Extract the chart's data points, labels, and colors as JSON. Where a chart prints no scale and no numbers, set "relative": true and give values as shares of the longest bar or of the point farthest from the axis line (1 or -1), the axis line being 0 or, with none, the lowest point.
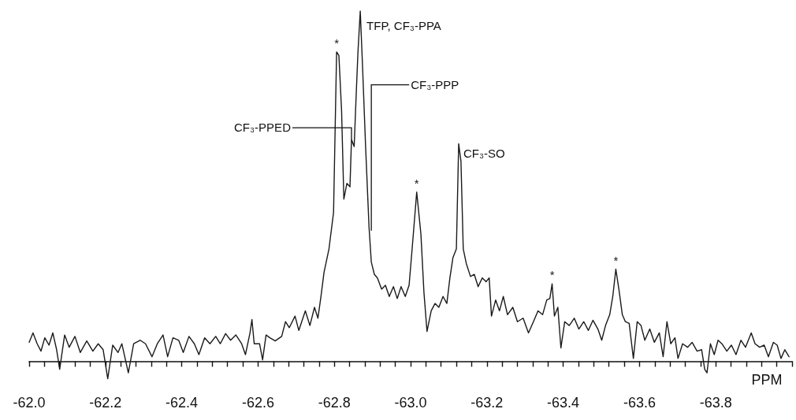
{
  "chart_data": {
    "type": "line",
    "relative": true,
    "xlabel": "PPM",
    "color": "#1a1a1a",
    "grid": false,
    "marker": "none",
    "line_style": "solid",
    "tick_labels": "x",
    "xlim": [
      -62.0,
      -64.0
    ],
    "xticks": [
      {
        "value": -62.0,
        "label": "-62.0"
      },
      {
        "value": -62.04,
        "label": null
      },
      {
        "value": -62.08,
        "label": null
      },
      {
        "value": -62.12,
        "label": null
      },
      {
        "value": -62.16,
        "label": null
      },
      {
        "value": -62.2,
        "label": "-62.2"
      },
      {
        "value": -62.24,
        "label": null
      },
      {
        "value": -62.28,
        "label": null
      },
      {
        "value": -62.32,
        "label": null
      },
      {
        "value": -62.36,
        "label": null
      },
      {
        "value": -62.4,
        "label": "-62.4"
      },
      {
        "value": -62.44,
        "label": null
      },
      {
        "value": -62.48,
        "label": null
      },
      {
        "value": -62.52,
        "label": null
      },
      {
        "value": -62.56,
        "label": null
      },
      {
        "value": -62.6,
        "label": "-62.6"
      },
      {
        "value": -62.64,
        "label": null
      },
      {
        "value": -62.68,
        "label": null
      },
      {
        "value": -62.72,
        "label": null
      },
      {
        "value": -62.76,
        "label": null
      },
      {
        "value": -62.8,
        "label": "-62.8"
      },
      {
        "value": -62.84,
        "label": null
      },
      {
        "value": -62.88,
        "label": null
      },
      {
        "value": -62.92,
        "label": null
      },
      {
        "value": -62.96,
        "label": null
      },
      {
        "value": -63.0,
        "label": "-63.0"
      },
      {
        "value": -63.04,
        "label": null
      },
      {
        "value": -63.08,
        "label": null
      },
      {
        "value": -63.12,
        "label": null
      },
      {
        "value": -63.16,
        "label": null
      },
      {
        "value": -63.2,
        "label": "-63.2"
      },
      {
        "value": -63.24,
        "label": null
      },
      {
        "value": -63.28,
        "label": null
      },
      {
        "value": -63.32,
        "label": null
      },
      {
        "value": -63.36,
        "label": null
      },
      {
        "value": -63.4,
        "label": "-63.4"
      },
      {
        "value": -63.44,
        "label": null
      },
      {
        "value": -63.48,
        "label": null
      },
      {
        "value": -63.52,
        "label": null
      },
      {
        "value": -63.56,
        "label": null
      },
      {
        "value": -63.6,
        "label": "-63.6"
      },
      {
        "value": -63.64,
        "label": null
      },
      {
        "value": -63.68,
        "label": null
      },
      {
        "value": -63.72,
        "label": null
      },
      {
        "value": -63.76,
        "label": null
      },
      {
        "value": -63.8,
        "label": "-63.8"
      },
      {
        "value": -63.84,
        "label": null
      },
      {
        "value": -63.88,
        "label": null
      },
      {
        "value": -63.92,
        "label": null
      },
      {
        "value": -63.96,
        "label": null
      },
      {
        "value": -64.0,
        "label": null
      }
    ],
    "x": [
      -62.0,
      -62.01,
      -62.021,
      -62.031,
      -62.041,
      -62.052,
      -62.062,
      -62.072,
      -62.08,
      -62.093,
      -62.105,
      -62.12,
      -62.134,
      -62.151,
      -62.167,
      -62.181,
      -62.194,
      -62.206,
      -62.219,
      -62.233,
      -62.243,
      -62.26,
      -62.274,
      -62.291,
      -62.305,
      -62.322,
      -62.336,
      -62.351,
      -62.363,
      -62.377,
      -62.392,
      -62.404,
      -62.419,
      -62.433,
      -62.445,
      -62.46,
      -62.474,
      -62.489,
      -62.501,
      -62.515,
      -62.528,
      -62.542,
      -62.557,
      -62.567,
      -62.579,
      -62.584,
      -62.59,
      -62.604,
      -62.612,
      -62.621,
      -62.631,
      -62.645,
      -62.662,
      -62.672,
      -62.682,
      -62.697,
      -62.707,
      -62.724,
      -62.736,
      -62.748,
      -62.757,
      -62.765,
      -62.773,
      -62.786,
      -62.798,
      -62.806,
      -62.812,
      -62.819,
      -62.825,
      -62.833,
      -62.841,
      -62.845,
      -62.852,
      -62.858,
      -62.862,
      -62.868,
      -62.874,
      -62.882,
      -62.891,
      -62.897,
      -62.905,
      -62.913,
      -62.924,
      -62.934,
      -62.944,
      -62.955,
      -62.965,
      -62.975,
      -62.986,
      -62.996,
      -63.004,
      -63.016,
      -63.027,
      -63.035,
      -63.043,
      -63.054,
      -63.064,
      -63.074,
      -63.085,
      -63.095,
      -63.103,
      -63.111,
      -63.12,
      -63.126,
      -63.132,
      -63.138,
      -63.146,
      -63.157,
      -63.167,
      -63.177,
      -63.188,
      -63.198,
      -63.206,
      -63.212,
      -63.223,
      -63.233,
      -63.243,
      -63.254,
      -63.268,
      -63.28,
      -63.295,
      -63.309,
      -63.322,
      -63.334,
      -63.346,
      -63.357,
      -63.365,
      -63.371,
      -63.377,
      -63.386,
      -63.394,
      -63.404,
      -63.416,
      -63.429,
      -63.441,
      -63.454,
      -63.466,
      -63.478,
      -63.491,
      -63.501,
      -63.511,
      -63.522,
      -63.53,
      -63.538,
      -63.546,
      -63.555,
      -63.563,
      -63.573,
      -63.584,
      -63.594,
      -63.604,
      -63.614,
      -63.627,
      -63.639,
      -63.652,
      -63.662,
      -63.672,
      -63.682,
      -63.693,
      -63.701,
      -63.713,
      -63.726,
      -63.738,
      -63.751,
      -63.763,
      -63.771,
      -63.777,
      -63.786,
      -63.796,
      -63.806,
      -63.816,
      -63.829,
      -63.841,
      -63.853,
      -63.866,
      -63.878,
      -63.893,
      -63.903,
      -63.915,
      -63.927,
      -63.938,
      -63.951,
      -63.961,
      -63.971,
      -63.981,
      -63.992
    ],
    "values": [
      0.054,
      0.081,
      0.05,
      0.029,
      0.067,
      0.046,
      0.081,
      0.033,
      -0.023,
      0.075,
      0.04,
      0.071,
      0.025,
      0.058,
      0.029,
      0.05,
      0.033,
      -0.05,
      0.046,
      0.025,
      0.05,
      -0.033,
      0.05,
      0.06,
      0.05,
      0.013,
      0.05,
      0.075,
      0.013,
      0.067,
      0.06,
      0.025,
      0.071,
      0.05,
      0.019,
      0.067,
      0.05,
      0.071,
      0.05,
      0.079,
      0.06,
      0.075,
      0.05,
      0.019,
      0.081,
      0.119,
      0.05,
      0.05,
      0.004,
      0.075,
      0.067,
      0.058,
      0.071,
      0.113,
      0.096,
      0.129,
      0.088,
      0.144,
      0.102,
      0.154,
      0.123,
      0.185,
      0.254,
      0.321,
      0.425,
      0.883,
      0.873,
      0.717,
      0.463,
      0.508,
      0.498,
      0.633,
      0.613,
      0.779,
      0.883,
      1,
      0.842,
      0.613,
      0.383,
      0.283,
      0.248,
      0.238,
      0.206,
      0.217,
      0.185,
      0.213,
      0.179,
      0.213,
      0.185,
      0.217,
      0.321,
      0.483,
      0.363,
      0.196,
      0.085,
      0.144,
      0.165,
      0.154,
      0.185,
      0.165,
      0.238,
      0.296,
      0.321,
      0.621,
      0.571,
      0.321,
      0.279,
      0.242,
      0.248,
      0.213,
      0.238,
      0.227,
      0.238,
      0.129,
      0.175,
      0.144,
      0.185,
      0.133,
      0.154,
      0.113,
      0.123,
      0.081,
      0.113,
      0.144,
      0.133,
      0.175,
      0.179,
      0.221,
      0.129,
      0.154,
      0.038,
      0.113,
      0.102,
      0.123,
      0.092,
      0.113,
      0.088,
      0.117,
      0.092,
      0.06,
      0.102,
      0.133,
      0.185,
      0.263,
      0.206,
      0.133,
      0.113,
      0.108,
      0.008,
      0.113,
      0.102,
      0.06,
      0.092,
      0.054,
      0.081,
      0.013,
      0.113,
      0.05,
      0.067,
      0.008,
      0.05,
      0.04,
      0.054,
      0.029,
      0.033,
      -0.023,
      -0.033,
      0.05,
      0.019,
      0.06,
      0.05,
      0.029,
      0.046,
      0.019,
      0.06,
      0.04,
      0.081,
      0.05,
      0.04,
      0.046,
      0.013,
      0.054,
      0.046,
      0.008,
      0.033,
      0.013
    ],
    "annotations": [
      {
        "text": "*",
        "x": -62.806,
        "y": 0.883
      },
      {
        "text": "TFP, CF₃-PPA",
        "x": -62.868,
        "y": 1
      },
      {
        "text": "CF₃-PPED",
        "x": -62.845,
        "y": 0.633
      },
      {
        "text": "CF₃-PPP",
        "x": -62.897,
        "y": 0.373
      },
      {
        "text": "*",
        "x": -63.016,
        "y": 0.483
      },
      {
        "text": "CF₃-SO",
        "x": -63.126,
        "y": 0.621
      },
      {
        "text": "*",
        "x": -63.371,
        "y": 0.221
      },
      {
        "text": "*",
        "x": -63.538,
        "y": 0.263
      }
    ]
  }
}
